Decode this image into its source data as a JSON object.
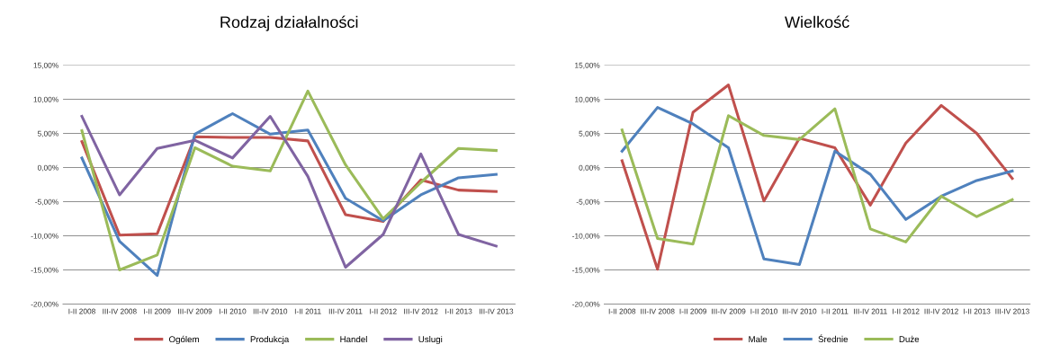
{
  "chart_data": [
    {
      "type": "line",
      "title": "Rodzaj działalności",
      "categories": [
        "I-II 2008",
        "III-IV 2008",
        "I-II 2009",
        "III-IV 2009",
        "I-II 2010",
        "III-IV 2010",
        "I-II 2011",
        "III-IV 2011",
        "I-II 2012",
        "III-IV 2012",
        "I-II 2013",
        "III-IV 2013"
      ],
      "series": [
        {
          "name": "Ogólem",
          "color": "#c0504d",
          "values": [
            3.8,
            -9.9,
            -9.7,
            4.5,
            4.4,
            4.4,
            3.9,
            -6.9,
            -7.9,
            -1.8,
            -3.3,
            -3.5
          ]
        },
        {
          "name": "Produkcja",
          "color": "#4f81bd",
          "values": [
            1.4,
            -10.8,
            -15.8,
            4.9,
            7.9,
            4.9,
            5.5,
            -4.5,
            -7.8,
            -4.0,
            -1.5,
            -1.0
          ]
        },
        {
          "name": "Handel",
          "color": "#9bbb59",
          "values": [
            5.4,
            -15.0,
            -12.8,
            2.9,
            0.2,
            -0.5,
            11.2,
            0.4,
            -7.5,
            -2.2,
            2.8,
            2.5
          ]
        },
        {
          "name": "Uslugi",
          "color": "#8064a2",
          "values": [
            7.5,
            -4.0,
            2.8,
            4.0,
            1.4,
            7.5,
            -1.3,
            -14.6,
            -9.8,
            2.0,
            -9.8,
            -11.5
          ]
        }
      ],
      "ylim": [
        -20,
        15
      ],
      "yticks": [
        {
          "value": -20,
          "label": "-20,00%"
        },
        {
          "value": -15,
          "label": "-15,00%"
        },
        {
          "value": -10,
          "label": "-10,00%"
        },
        {
          "value": -5,
          "label": "-5,00%"
        },
        {
          "value": 0,
          "label": "0,00%"
        },
        {
          "value": 5,
          "label": "5,00%"
        },
        {
          "value": 10,
          "label": "10,00%"
        },
        {
          "value": 15,
          "label": "15,00%"
        }
      ],
      "grid": "y",
      "legend": "bottom",
      "marker": "none",
      "line_style": "solid"
    },
    {
      "type": "line",
      "title": "Wielkość",
      "categories": [
        "I-II 2008",
        "III-IV 2008",
        "I-II 2009",
        "III-IV 2009",
        "I-II 2010",
        "III-IV 2010",
        "I-II 2011",
        "III-IV 2011",
        "I-II 2012",
        "III-IV 2012",
        "I-II 2013",
        "III-IV 2013"
      ],
      "series": [
        {
          "name": "Male",
          "color": "#c0504d",
          "values": [
            1.0,
            -14.9,
            8.1,
            12.1,
            -4.9,
            4.3,
            2.9,
            -5.5,
            3.6,
            9.1,
            5.0,
            -1.6
          ]
        },
        {
          "name": "Średnie",
          "color": "#4f81bd",
          "values": [
            2.4,
            8.8,
            6.4,
            2.9,
            -13.4,
            -14.2,
            2.4,
            -1.0,
            -7.6,
            -4.2,
            -1.9,
            -0.5
          ]
        },
        {
          "name": "Duże",
          "color": "#9bbb59",
          "values": [
            5.5,
            -10.4,
            -11.2,
            7.6,
            4.7,
            4.1,
            8.6,
            -9.0,
            -10.9,
            -4.2,
            -7.2,
            -4.7
          ]
        }
      ],
      "ylim": [
        -20,
        15
      ],
      "yticks": [
        {
          "value": -20,
          "label": "-20,00%"
        },
        {
          "value": -15,
          "label": "-15,00%"
        },
        {
          "value": -10,
          "label": "-10,00%"
        },
        {
          "value": -5,
          "label": "-5,00%"
        },
        {
          "value": 0,
          "label": "0,00%"
        },
        {
          "value": 5,
          "label": "5,00%"
        },
        {
          "value": 10,
          "label": "10,00%"
        },
        {
          "value": 15,
          "label": "15,00%"
        }
      ],
      "grid": "y",
      "legend": "bottom",
      "marker": "none",
      "line_style": "solid"
    }
  ]
}
